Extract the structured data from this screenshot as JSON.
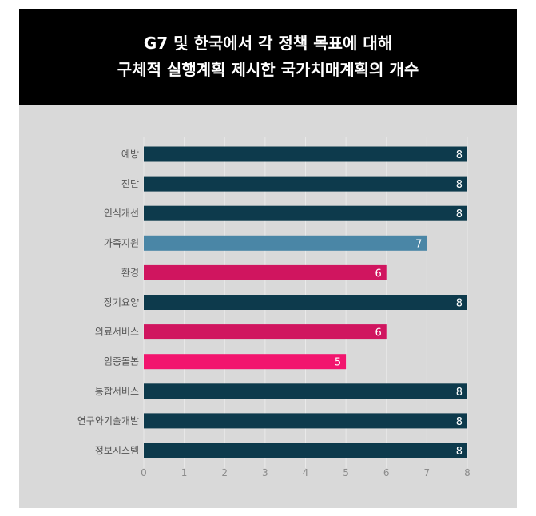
{
  "title": {
    "line1": "G7 및 한국에서 각 정책 목표에 대해",
    "line2": "구체적 실행계획 제시한 국가치매계획의 개수"
  },
  "chart_data": {
    "type": "bar",
    "orientation": "horizontal",
    "title": "G7 및 한국에서 각 정책 목표에 대해 구체적 실행계획 제시한 국가치매계획의 개수",
    "categories": [
      "예방",
      "진단",
      "인식개선",
      "가족지원",
      "환경",
      "장기요양",
      "의료서비스",
      "임종돌봄",
      "통합서비스",
      "연구와기술개발",
      "정보시스템"
    ],
    "values": [
      8,
      8,
      8,
      7,
      6,
      8,
      6,
      5,
      8,
      8,
      8
    ],
    "colors": [
      "#0d3a4c",
      "#0d3a4c",
      "#0d3a4c",
      "#4a86a6",
      "#d0155f",
      "#0d3a4c",
      "#d0155f",
      "#f2156e",
      "#0d3a4c",
      "#0d3a4c",
      "#0d3a4c"
    ],
    "xlim": [
      0,
      8
    ],
    "xticks": [
      "0",
      "1",
      "2",
      "3",
      "4",
      "5",
      "6",
      "7",
      "8"
    ],
    "grid": true,
    "data_labels": true
  }
}
